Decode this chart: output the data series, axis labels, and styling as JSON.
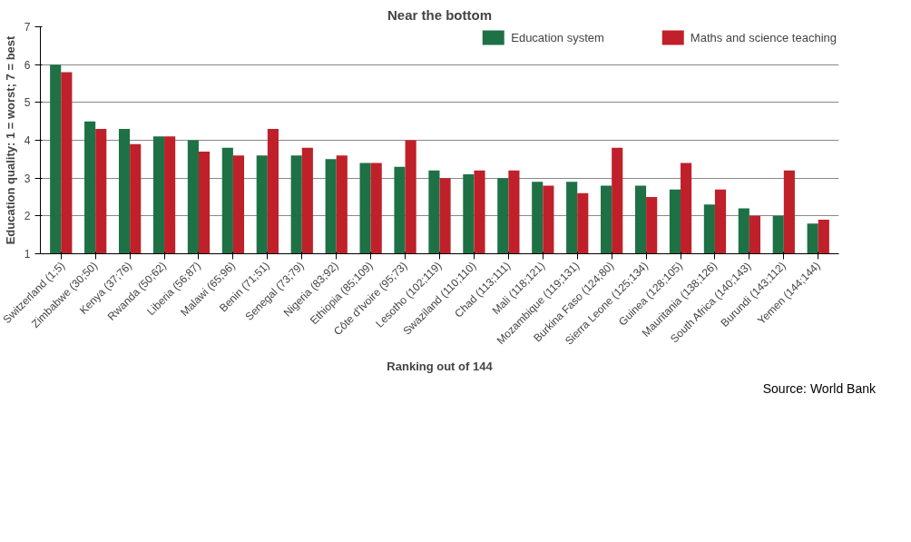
{
  "chart_data": {
    "type": "bar",
    "title": "Near the bottom",
    "xlabel": "Ranking out of 144",
    "ylabel": "Education quality: 1 = worst; 7 = best",
    "categories": [
      "Switzerland (1;5)",
      "Zimbabwe (30;50)",
      "Kenya (37;76)",
      "Rwanda (50;62)",
      "Liberia (56;87)",
      "Malawi (65;96)",
      "Benin (71;51)",
      "Senegal (73;79)",
      "Nigeria (83;92)",
      "Ethiopia (85;109)",
      "Côte d'Ivoire (95;73)",
      "Lesotho (102;119)",
      "Swaziland (110;110)",
      "Chad (113;111)",
      "Mali (118;121)",
      "Mozambique (119;131)",
      "Burkina Faso (124;80)",
      "Sierra Leone (125;134)",
      "Guinea (128;105)",
      "Mauritania (138;126)",
      "South Africa (140;143)",
      "Burundi (143;112)",
      "Yemen (144;144)"
    ],
    "series": [
      {
        "name": "Education system",
        "color": "#1e7145",
        "values": [
          6.0,
          4.5,
          4.3,
          4.1,
          4.0,
          3.8,
          3.6,
          3.6,
          3.5,
          3.4,
          3.3,
          3.2,
          3.1,
          3.0,
          2.9,
          2.9,
          2.8,
          2.8,
          2.7,
          2.3,
          2.2,
          2.0,
          1.8
        ]
      },
      {
        "name": "Maths and science teaching",
        "color": "#c0202a",
        "values": [
          5.8,
          4.3,
          3.9,
          4.1,
          3.7,
          3.6,
          4.3,
          3.8,
          3.6,
          3.4,
          4.0,
          3.0,
          3.2,
          3.2,
          2.8,
          2.6,
          3.8,
          2.5,
          3.4,
          2.7,
          2.0,
          3.2,
          1.9
        ]
      }
    ],
    "ylim": [
      1,
      7
    ],
    "yticks": [
      1,
      2,
      3,
      4,
      5,
      6,
      7
    ],
    "grid": "y",
    "legend": "top right",
    "annotations": [
      "Source: World Bank"
    ]
  }
}
